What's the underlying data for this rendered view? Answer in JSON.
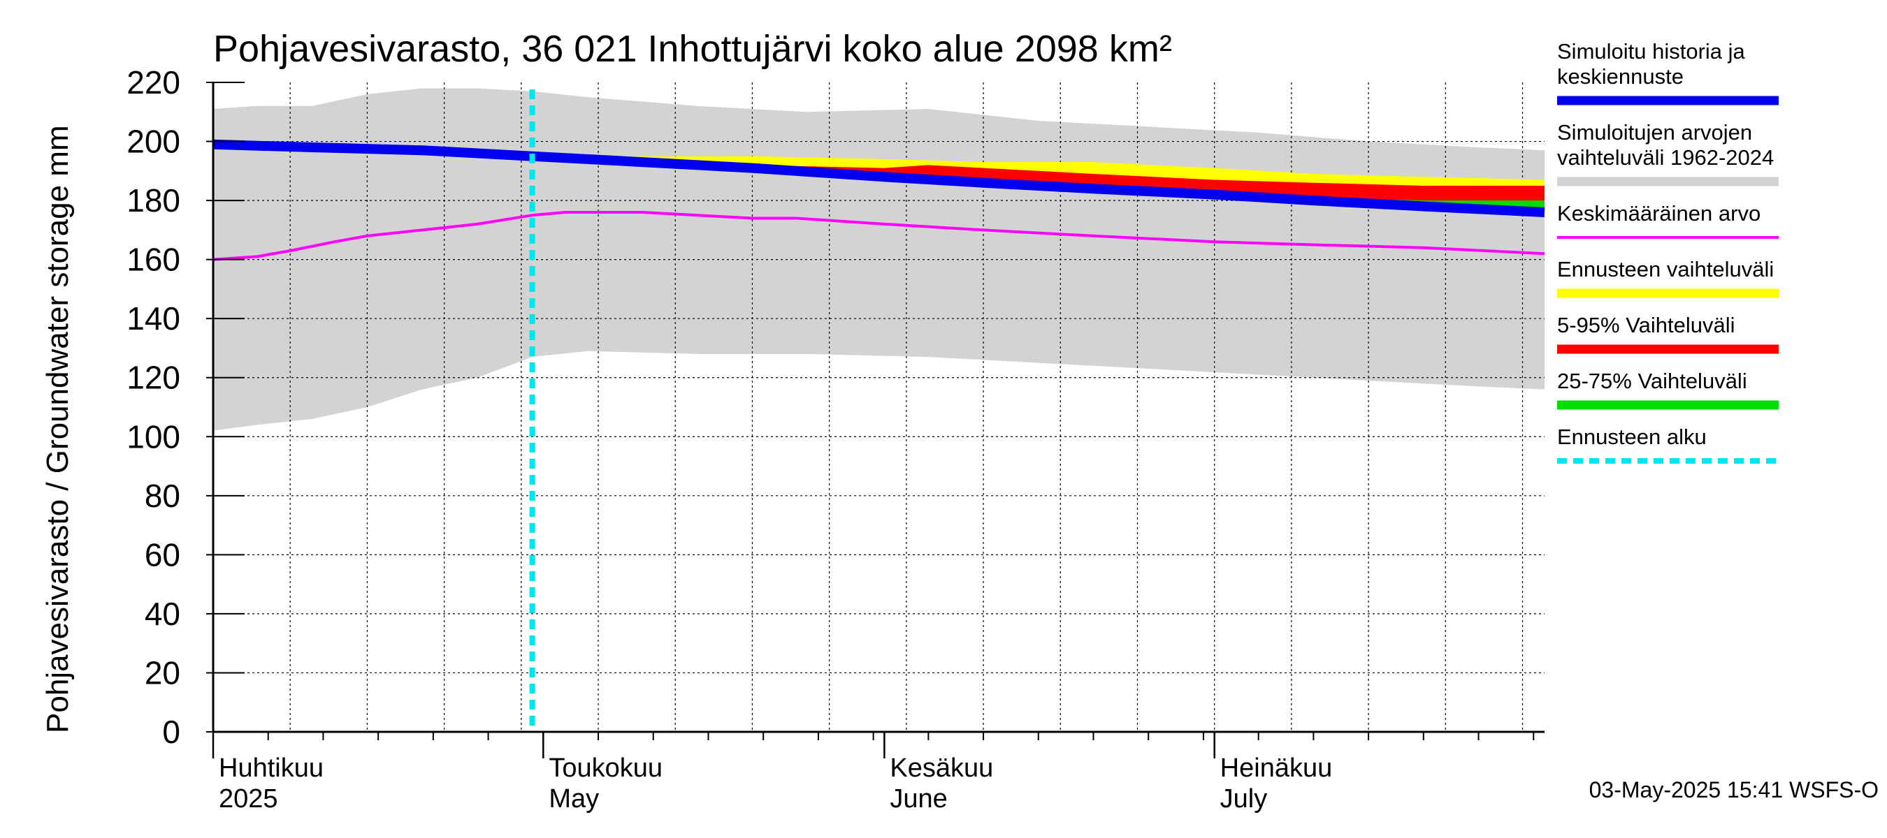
{
  "chart_data": {
    "type": "area",
    "title": "Pohjavesivarasto, 36 021 Inhottujärvi koko alue 2098 km²",
    "ylabel": "Pohjavesivarasto / Groundwater storage   mm",
    "ylim": [
      0,
      220
    ],
    "yticks": [
      0,
      20,
      40,
      60,
      80,
      100,
      120,
      140,
      160,
      180,
      200,
      220
    ],
    "xlim": [
      "2025-04-01",
      "2025-07-31"
    ],
    "month_labels": [
      {
        "date": "2025-04-01",
        "fi": "Huhtikuu",
        "en": "2025"
      },
      {
        "date": "2025-05-01",
        "fi": "Toukokuu",
        "en": "May"
      },
      {
        "date": "2025-06-01",
        "fi": "Kesäkuu",
        "en": "June"
      },
      {
        "date": "2025-07-01",
        "fi": "Heinäkuu",
        "en": "July"
      }
    ],
    "forecast_start": "2025-04-30",
    "grid": true,
    "legend_position": "right",
    "series": [
      {
        "key": "hist_range",
        "name": "Simuloitujen arvojen vaihteluväli 1962-2024",
        "kind": "band",
        "color": "#d3d3d3",
        "x": [
          "2025-04-01",
          "2025-04-05",
          "2025-04-10",
          "2025-04-15",
          "2025-04-20",
          "2025-04-25",
          "2025-04-30",
          "2025-05-05",
          "2025-05-15",
          "2025-05-25",
          "2025-06-05",
          "2025-06-15",
          "2025-06-25",
          "2025-07-05",
          "2025-07-15",
          "2025-07-25",
          "2025-07-31"
        ],
        "low": [
          102,
          104,
          106,
          110,
          116,
          120,
          127,
          129,
          128,
          128,
          127,
          125,
          123,
          121,
          119,
          117,
          116
        ],
        "high": [
          211,
          212,
          212,
          216,
          218,
          218,
          217,
          215,
          212,
          210,
          211,
          207,
          205,
          203,
          200,
          198,
          197
        ]
      },
      {
        "key": "forecast_range",
        "name": "Ennusteen vaihteluväli",
        "kind": "band",
        "color": "#ffff00",
        "x": [
          "2025-04-30",
          "2025-05-10",
          "2025-05-20",
          "2025-06-01",
          "2025-06-10",
          "2025-06-20",
          "2025-07-01",
          "2025-07-10",
          "2025-07-20",
          "2025-07-31"
        ],
        "low": [
          195,
          193,
          191,
          188,
          186,
          184,
          182,
          180,
          178,
          176
        ],
        "high": [
          195,
          195,
          195,
          194,
          193,
          193,
          191,
          189,
          188,
          187
        ]
      },
      {
        "key": "p5_95",
        "name": "5-95% Vaihteluväli",
        "kind": "band",
        "color": "#ff0000",
        "x": [
          "2025-04-30",
          "2025-05-10",
          "2025-05-20",
          "2025-06-01",
          "2025-06-05",
          "2025-06-10",
          "2025-06-20",
          "2025-07-01",
          "2025-07-10",
          "2025-07-20",
          "2025-07-31"
        ],
        "low": [
          195,
          193,
          191,
          188,
          187,
          186,
          184,
          182,
          180,
          178,
          176
        ],
        "high": [
          195,
          194,
          192,
          191,
          192,
          191,
          189,
          187,
          186,
          185,
          185
        ]
      },
      {
        "key": "p25_75",
        "name": "25-75% Vaihteluväli",
        "kind": "band",
        "color": "#00dd00",
        "x": [
          "2025-07-10",
          "2025-07-20",
          "2025-07-31"
        ],
        "low": [
          180,
          178,
          177
        ],
        "high": [
          181,
          180,
          180
        ]
      },
      {
        "key": "mean",
        "name": "Keskimääräinen arvo",
        "kind": "line",
        "color": "#ff00ff",
        "x": [
          "2025-04-01",
          "2025-04-05",
          "2025-04-08",
          "2025-04-12",
          "2025-04-15",
          "2025-04-20",
          "2025-04-25",
          "2025-04-30",
          "2025-05-03",
          "2025-05-10",
          "2025-05-20",
          "2025-05-24",
          "2025-06-01",
          "2025-06-10",
          "2025-06-20",
          "2025-07-01",
          "2025-07-10",
          "2025-07-20",
          "2025-07-31"
        ],
        "values": [
          160,
          161,
          163,
          166,
          168,
          170,
          172,
          175,
          176,
          176,
          174,
          174,
          172,
          170,
          168,
          166,
          165,
          164,
          162
        ]
      },
      {
        "key": "sim",
        "name": "Simuloitu historia ja keskiennuste",
        "kind": "line",
        "color": "#0000ee",
        "x": [
          "2025-04-01",
          "2025-04-10",
          "2025-04-20",
          "2025-04-30",
          "2025-05-10",
          "2025-05-20",
          "2025-06-01",
          "2025-06-10",
          "2025-06-20",
          "2025-07-01",
          "2025-07-10",
          "2025-07-20",
          "2025-07-31"
        ],
        "values": [
          199,
          198,
          197,
          195,
          193,
          191,
          188,
          186,
          184,
          182,
          180,
          178,
          176
        ]
      }
    ]
  },
  "legend": [
    {
      "key": "sim",
      "lines": [
        "Simuloitu historia ja",
        "keskiennuste"
      ],
      "color": "#0000ee",
      "style": "solid"
    },
    {
      "key": "hist_range",
      "lines": [
        "Simuloitujen arvojen",
        "vaihteluväli 1962-2024"
      ],
      "color": "#d3d3d3",
      "style": "solid"
    },
    {
      "key": "mean",
      "lines": [
        "Keskimääräinen arvo"
      ],
      "color": "#ff00ff",
      "style": "thin"
    },
    {
      "key": "forecast_range",
      "lines": [
        "Ennusteen vaihteluväli"
      ],
      "color": "#ffff00",
      "style": "solid"
    },
    {
      "key": "p5_95",
      "lines": [
        "5-95% Vaihteluväli"
      ],
      "color": "#ff0000",
      "style": "solid"
    },
    {
      "key": "p25_75",
      "lines": [
        "25-75% Vaihteluväli"
      ],
      "color": "#00dd00",
      "style": "solid"
    },
    {
      "key": "forecast_start",
      "lines": [
        "Ennusteen alku"
      ],
      "color": "#00e5ee",
      "style": "dashed"
    }
  ],
  "footer": {
    "timestamp": "03-May-2025 15:41 WSFS-O"
  }
}
